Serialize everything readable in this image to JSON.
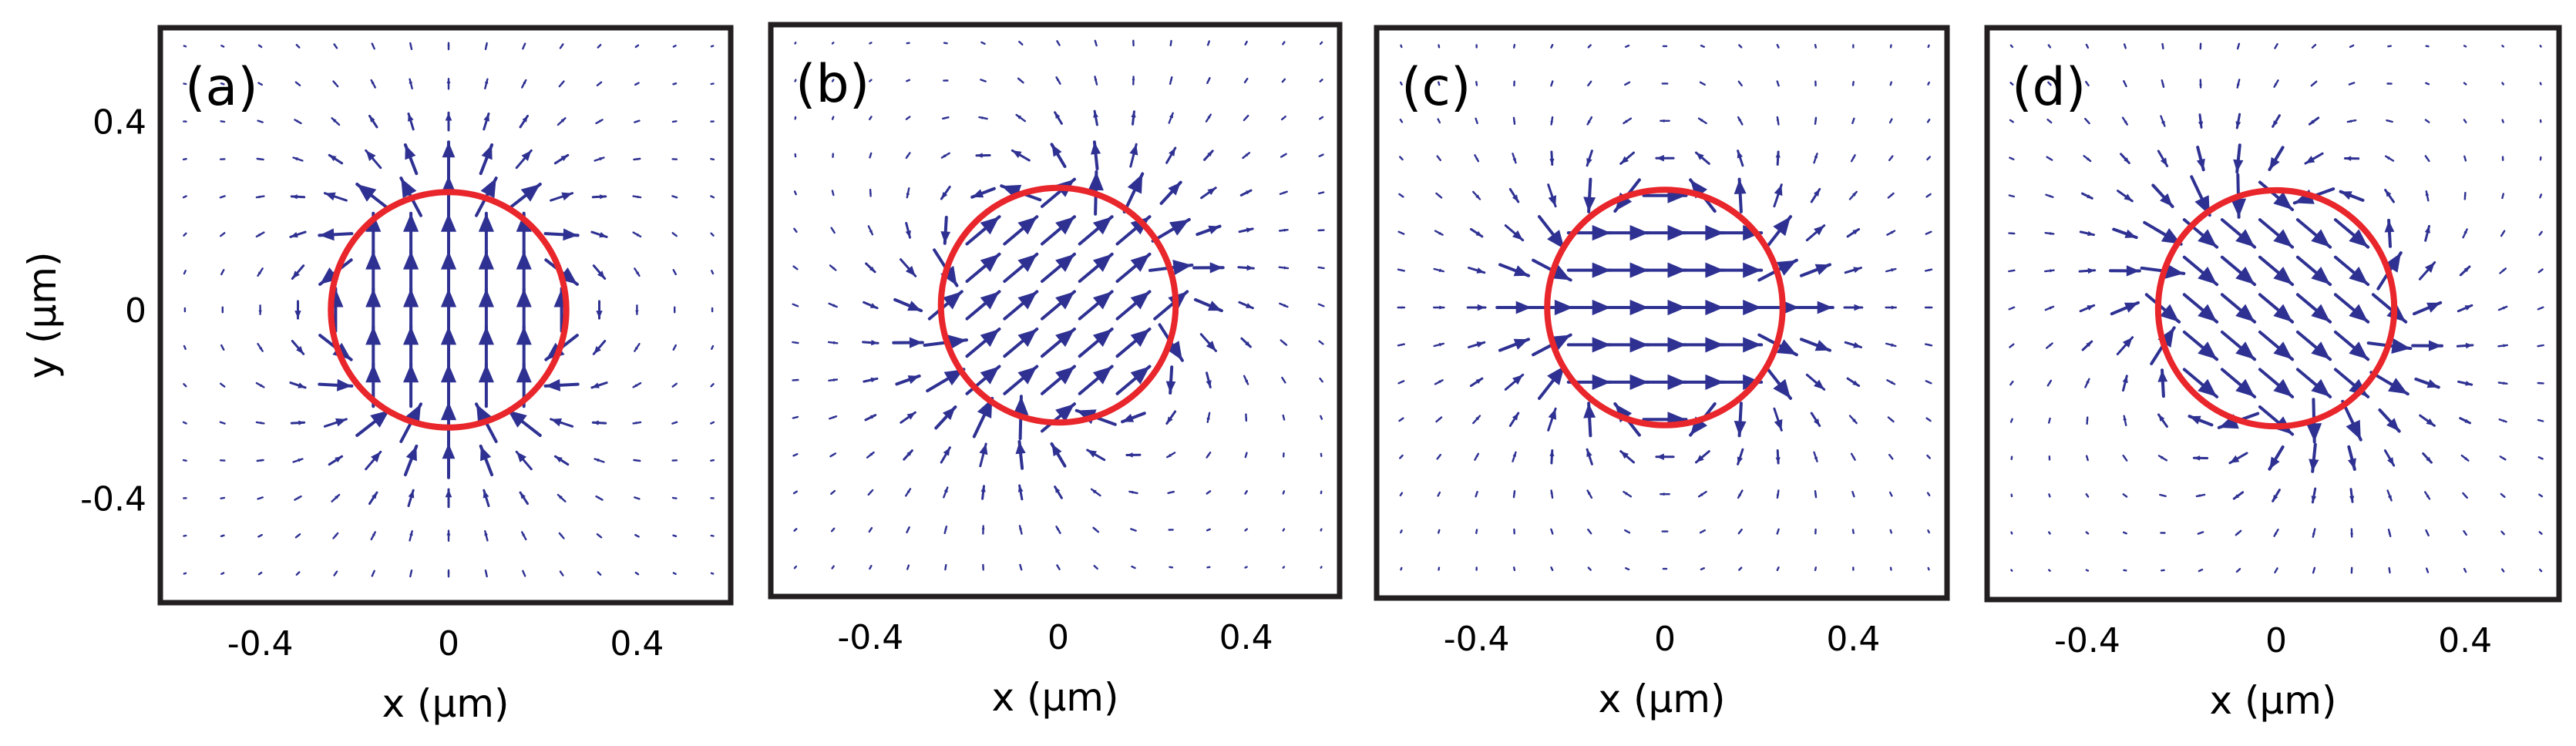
{
  "chart_data": [
    {
      "type": "quiver",
      "panel_label": "(a)",
      "xlabel": "x (μm)",
      "ylabel": "y (μm)",
      "xlim": [
        -0.55,
        0.55
      ],
      "ylim": [
        -0.55,
        0.55
      ],
      "xticks": [
        -0.4,
        0,
        0.4
      ],
      "xtick_labels": [
        "-0.4",
        "0",
        "0.4"
      ],
      "yticks": [
        -0.4,
        0,
        0.4
      ],
      "ytick_labels": [
        "-0.4",
        "0",
        "0.4"
      ],
      "field_angle_deg": 90,
      "circle": {
        "center": [
          0,
          0
        ],
        "radius": 0.25
      },
      "grid": false
    },
    {
      "type": "quiver",
      "panel_label": "(b)",
      "xlabel": "x (μm)",
      "xlim": [
        -0.55,
        0.55
      ],
      "ylim": [
        -0.55,
        0.55
      ],
      "xticks": [
        -0.4,
        0,
        0.4
      ],
      "xtick_labels": [
        "-0.4",
        "0",
        "0.4"
      ],
      "field_angle_deg": 40,
      "circle": {
        "center": [
          0,
          0
        ],
        "radius": 0.25
      },
      "grid": false
    },
    {
      "type": "quiver",
      "panel_label": "(c)",
      "xlabel": "x (μm)",
      "xlim": [
        -0.55,
        0.55
      ],
      "ylim": [
        -0.55,
        0.55
      ],
      "xticks": [
        -0.4,
        0,
        0.4
      ],
      "xtick_labels": [
        "-0.4",
        "0",
        "0.4"
      ],
      "field_angle_deg": 0,
      "circle": {
        "center": [
          0,
          0
        ],
        "radius": 0.25
      },
      "grid": false
    },
    {
      "type": "quiver",
      "panel_label": "(d)",
      "xlabel": "x (μm)",
      "xlim": [
        -0.55,
        0.55
      ],
      "ylim": [
        -0.55,
        0.55
      ],
      "xticks": [
        -0.4,
        0,
        0.4
      ],
      "xtick_labels": [
        "-0.4",
        "0",
        "0.4"
      ],
      "field_angle_deg": -40,
      "circle": {
        "center": [
          0,
          0
        ],
        "radius": 0.25
      },
      "grid": false
    }
  ],
  "colors": {
    "arrow": "#2e3192",
    "circle": "#e8262b",
    "frame": "#231f20",
    "text": "#000000"
  }
}
